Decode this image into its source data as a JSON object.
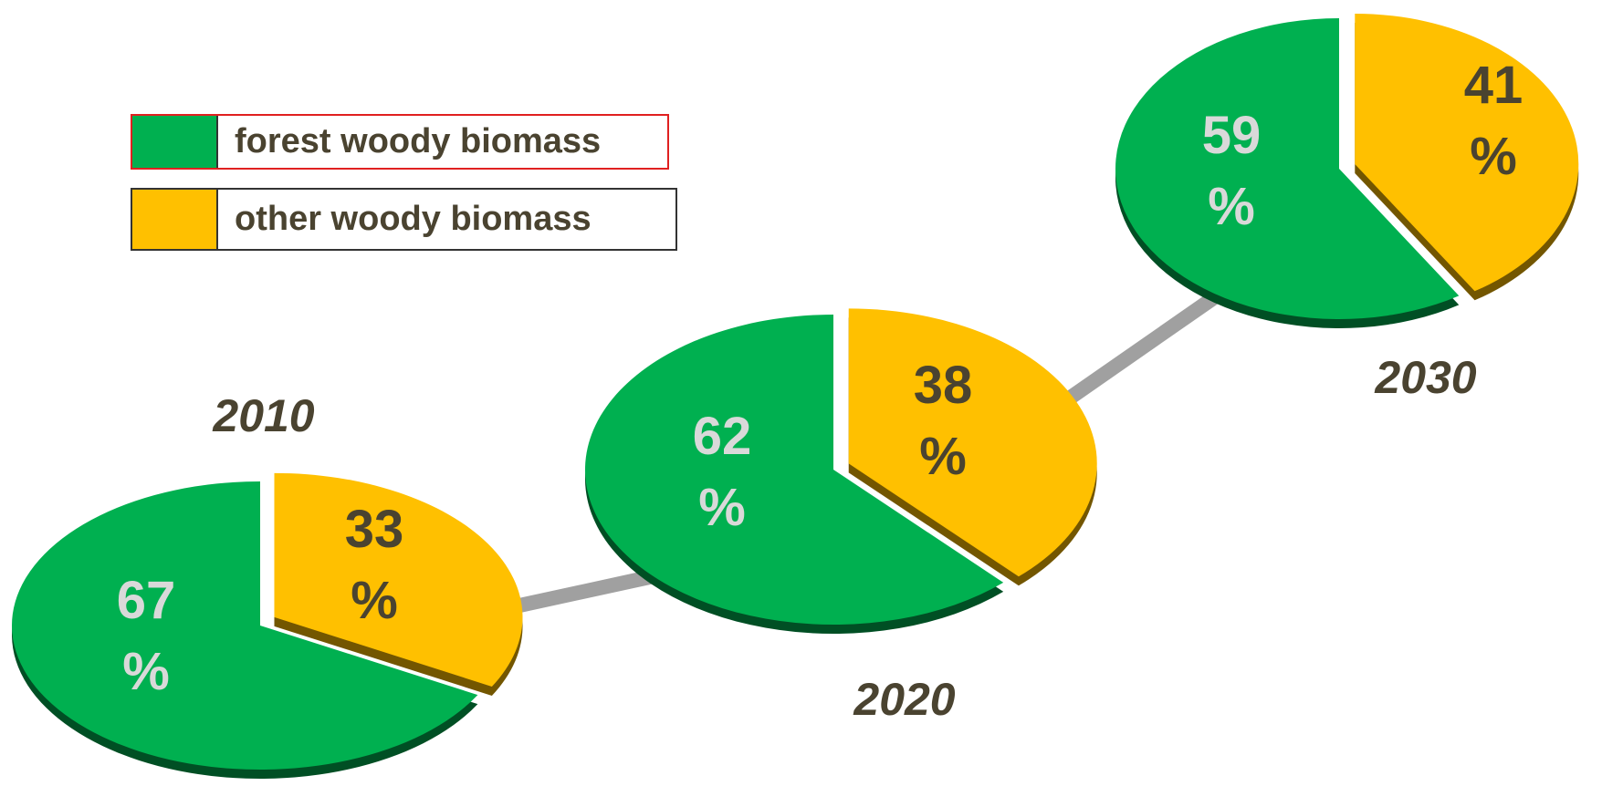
{
  "legend": [
    {
      "name": "forest woody biomass",
      "color": "#00b050"
    },
    {
      "name": "other woody biomass",
      "color": "#ffc000"
    }
  ],
  "chart_data": [
    {
      "type": "pie",
      "title": "2010",
      "values": [
        67,
        33
      ],
      "value_labels": [
        "67 %",
        "33 %"
      ]
    },
    {
      "type": "pie",
      "title": "2020",
      "values": [
        62,
        38
      ],
      "value_labels": [
        "62 %",
        "38 %"
      ]
    },
    {
      "type": "pie",
      "title": "2030",
      "values": [
        59,
        41
      ],
      "value_labels": [
        "59 %",
        "41 %"
      ]
    }
  ]
}
